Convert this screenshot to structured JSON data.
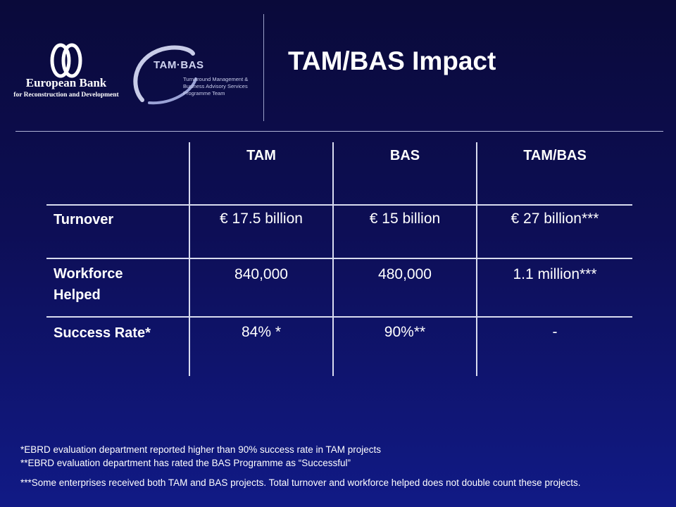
{
  "logos": {
    "ebrd_name": "European Bank",
    "ebrd_sub": "for Reconstruction and Development",
    "tambas_word": "TAM·BAS",
    "tambas_sub": [
      "TurnAround Management &",
      "Business Advisory Services",
      "Programme Team"
    ]
  },
  "title": "TAM/BAS Impact",
  "table": {
    "headers": [
      "TAM",
      "BAS",
      "TAM/BAS"
    ],
    "rows": [
      {
        "label": "Turnover",
        "values": [
          "€ 17.5 billion",
          "€ 15 billion",
          "€ 27 billion***"
        ]
      },
      {
        "label_lines": [
          "Workforce",
          "Helped"
        ],
        "values": [
          "840,000",
          "480,000",
          "1.1 million***"
        ]
      },
      {
        "label": "Success Rate*",
        "values": [
          "84% *",
          "90%**",
          "-"
        ]
      }
    ]
  },
  "footnotes": [
    "*EBRD evaluation department reported higher than 90% success rate in TAM projects",
    "**EBRD evaluation department has rated the BAS Programme as “Successful”",
    "***Some enterprises received both TAM and BAS projects. Total turnover and workforce helped does not double count these projects."
  ],
  "colors": {
    "background_top": "#0a0a3a",
    "background_bottom": "#111a86",
    "text": "#ffffff"
  }
}
